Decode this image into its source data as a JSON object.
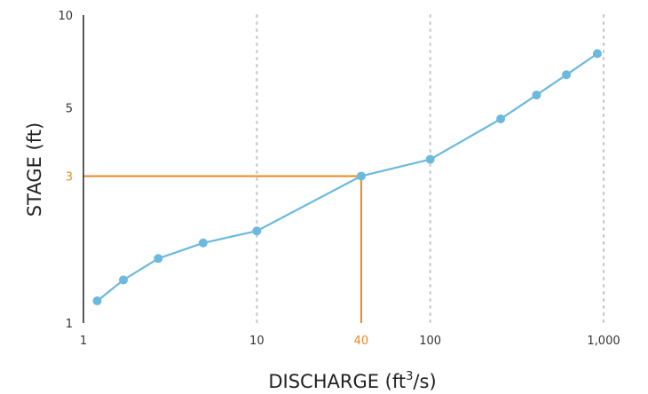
{
  "chart_data": {
    "type": "line",
    "x_scale": "log",
    "y_scale": "log",
    "xlabel_main": "DISCHARGE (ft",
    "xlabel_sup": "3",
    "xlabel_end": "/s)",
    "ylabel": "STAGE (ft)",
    "xlim": [
      1,
      1000
    ],
    "ylim": [
      1,
      10
    ],
    "x_ticks": [
      {
        "value": 1,
        "label": "1"
      },
      {
        "value": 10,
        "label": "10"
      },
      {
        "value": 100,
        "label": "100"
      },
      {
        "value": 1000,
        "label": "1,000"
      }
    ],
    "y_ticks": [
      {
        "value": 1,
        "label": "1"
      },
      {
        "value": 5,
        "label": "5"
      },
      {
        "value": 10,
        "label": "10"
      }
    ],
    "grid": "vertical dotted at x ticks",
    "series": [
      {
        "color": "#6bb9dc",
        "points": [
          {
            "x": 1.2,
            "y": 1.18
          },
          {
            "x": 1.7,
            "y": 1.38
          },
          {
            "x": 2.7,
            "y": 1.62
          },
          {
            "x": 4.9,
            "y": 1.82
          },
          {
            "x": 10,
            "y": 1.99
          },
          {
            "x": 40,
            "y": 3.0
          },
          {
            "x": 100,
            "y": 3.4
          },
          {
            "x": 255,
            "y": 4.6
          },
          {
            "x": 410,
            "y": 5.5
          },
          {
            "x": 610,
            "y": 6.4
          },
          {
            "x": 920,
            "y": 7.5
          }
        ]
      }
    ],
    "highlight": {
      "x": 40,
      "y": 3,
      "x_label": "40",
      "y_label": "3",
      "color": "#e8892b"
    }
  }
}
